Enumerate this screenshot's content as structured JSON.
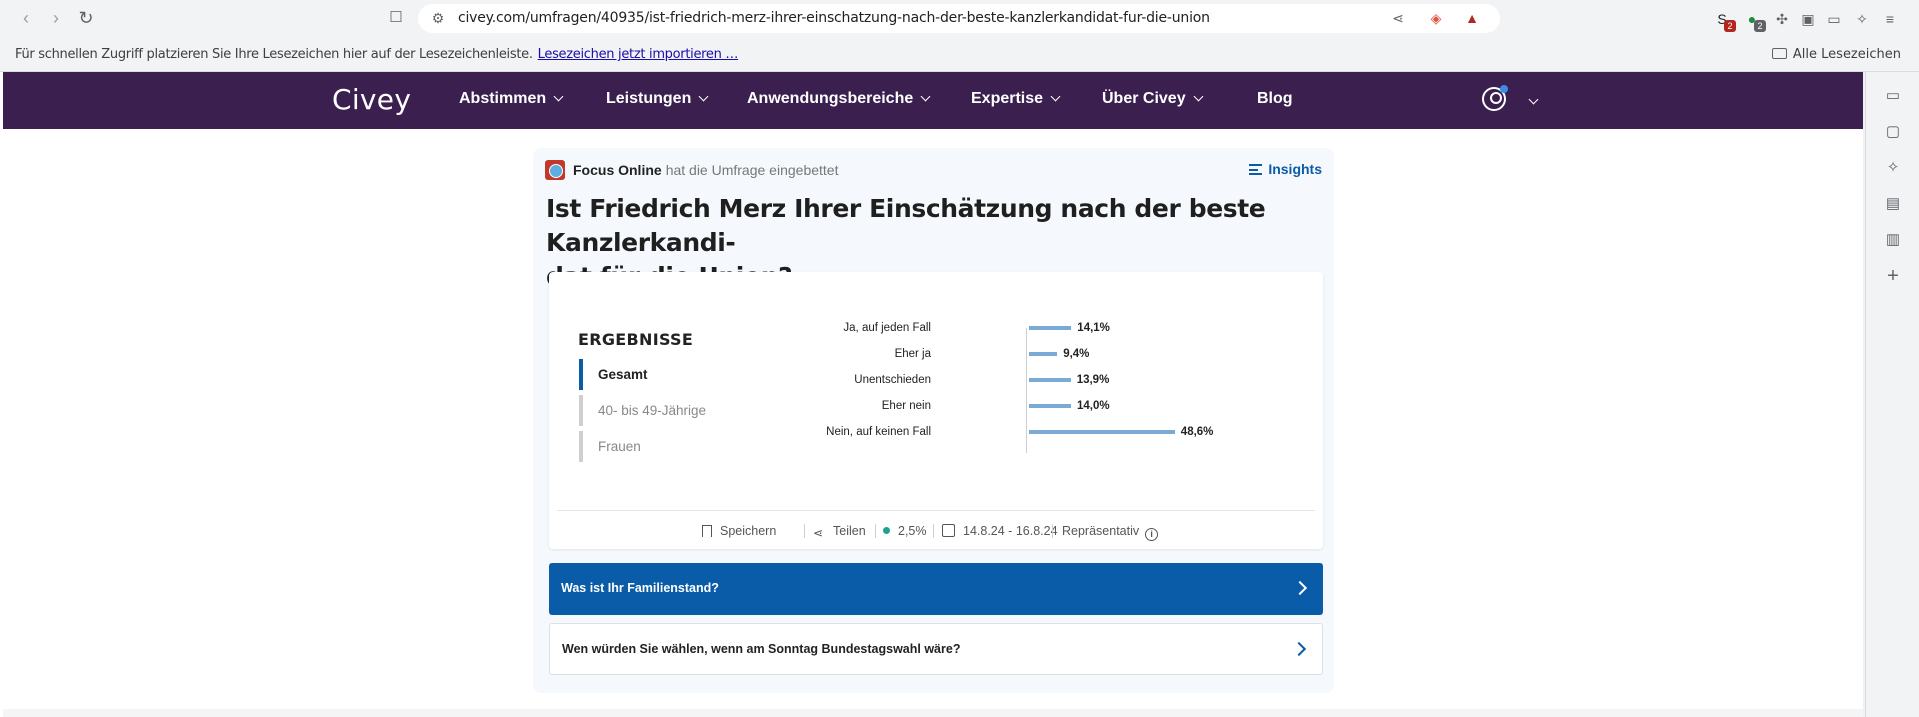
{
  "browser": {
    "url": "civey.com/umfragen/40935/ist-friedrich-merz-ihrer-einschatzung-nach-der-beste-kanzlerkandidat-fur-die-union",
    "bookmarks_prompt": "Für schnellen Zugriff platzieren Sie Ihre Lesezeichen hier auf der Lesezeichenleiste.",
    "bookmarks_import_link": "Lesezeichen jetzt importieren …",
    "all_bookmarks": "Alle Lesezeichen",
    "extension_badges": [
      "2",
      "2"
    ]
  },
  "site": {
    "logo": "Civey",
    "nav": [
      "Abstimmen",
      "Leistungen",
      "Anwendungsbereiche",
      "Expertise",
      "Über Civey",
      "Blog"
    ]
  },
  "poll": {
    "embed_source": "Focus Online",
    "embed_text": "hat die Umfrage eingebettet",
    "insights_label": "Insights",
    "question_line1": "Ist Friedrich Merz Ihrer Einschätzung nach der beste Kanzlerkandi-",
    "question_line2": "dat für die Union?",
    "results_title": "ERGEBNISSE",
    "segments": [
      "Gesamt",
      "40- bis 49-Jährige",
      "Frauen"
    ],
    "meta": {
      "save": "Speichern",
      "share": "Teilen",
      "error_margin": "2,5%",
      "period": "14.8.24 - 16.8.24",
      "representative": "Repräsentativ"
    },
    "related": [
      "Was ist Ihr Familienstand?",
      "Wen würden Sie wählen, wenn am Sonntag Bundestagswahl wäre?"
    ]
  },
  "chart_data": {
    "type": "bar",
    "orientation": "horizontal",
    "categories": [
      "Ja, auf jeden Fall",
      "Eher ja",
      "Unentschieden",
      "Eher nein",
      "Nein, auf keinen Fall"
    ],
    "values": [
      14.1,
      9.4,
      13.9,
      14.0,
      48.6
    ],
    "value_labels": [
      "14,1%",
      "9,4%",
      "13,9%",
      "14,0%",
      "48,6%"
    ],
    "unit": "%",
    "bar_color": "#7aaad6"
  },
  "colors": {
    "nav_bg": "#3b1f4f",
    "accent": "#0a5ca8",
    "live_dot": "#1aa58f"
  }
}
